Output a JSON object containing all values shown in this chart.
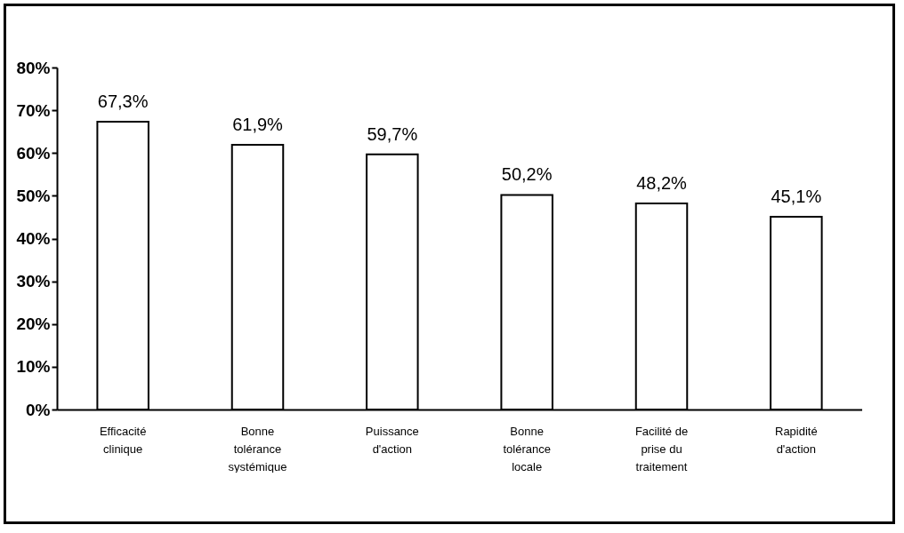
{
  "chart_data": {
    "type": "bar",
    "categories": [
      "Efficacité clinique",
      "Bonne tolérance systémique",
      "Puissance d'action",
      "Bonne tolérance locale",
      "Facilité de prise du traitement",
      "Rapidité d'action"
    ],
    "values": [
      67.3,
      61.9,
      59.7,
      50.2,
      48.2,
      45.1
    ],
    "value_labels": [
      "67,3%",
      "61,9%",
      "59,7%",
      "50,2%",
      "48,2%",
      "45,1%"
    ],
    "color": "#ffffff",
    "ylim": [
      0,
      80
    ],
    "yticks": [
      {
        "value": 0,
        "label": "0%"
      },
      {
        "value": 10,
        "label": "10%"
      },
      {
        "value": 20,
        "label": "20%"
      },
      {
        "value": 30,
        "label": "30%"
      },
      {
        "value": 40,
        "label": "40%"
      },
      {
        "value": 50,
        "label": "50%"
      },
      {
        "value": 60,
        "label": "60%"
      },
      {
        "value": 70,
        "label": "70%"
      },
      {
        "value": 80,
        "label": "80%"
      }
    ],
    "grid": false
  }
}
